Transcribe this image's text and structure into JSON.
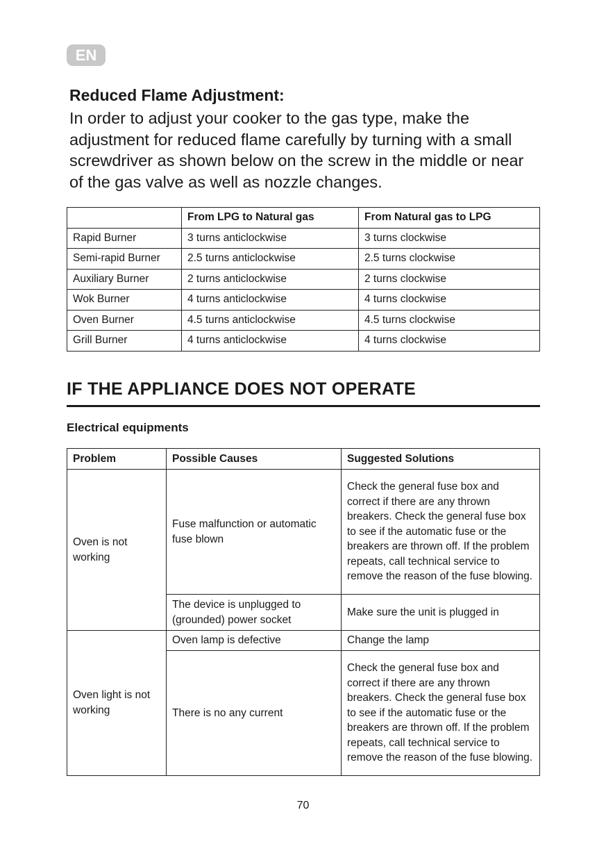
{
  "badge": "EN",
  "section1": {
    "title": "Reduced Flame Adjustment:",
    "text": "In order to adjust your cooker to the gas type, make the adjustment for reduced flame carefully by turning with a small screwdriver as shown below on the screw in the middle or near of the gas valve as well as nozzle changes."
  },
  "table1": {
    "headers": [
      "",
      "From LPG to Natural gas",
      "From Natural gas to LPG"
    ],
    "rows": [
      [
        "Rapid Burner",
        "3 turns anticlockwise",
        "3 turns clockwise"
      ],
      [
        "Semi-rapid Burner",
        "2.5 turns anticlockwise",
        "2.5 turns clockwise"
      ],
      [
        "Auxiliary Burner",
        "2 turns anticlockwise",
        "2 turns clockwise"
      ],
      [
        "Wok Burner",
        "4 turns anticlockwise",
        "4 turns clockwise"
      ],
      [
        "Oven Burner",
        "4.5 turns anticlockwise",
        "4.5 turns clockwise"
      ],
      [
        "Grill Burner",
        "4 turns anticlockwise",
        "4 turns clockwise"
      ]
    ]
  },
  "section2": {
    "title": "IF THE APPLIANCE DOES NOT OPERATE",
    "subtitle": "Electrical equipments"
  },
  "table2": {
    "headers": [
      "Problem",
      "Possible Causes",
      "Suggested Solutions"
    ],
    "problems": [
      "Oven is not working",
      "Oven light is not working"
    ],
    "causes": [
      "Fuse malfunction or automatic fuse blown",
      "The device is unplugged to (grounded) power socket",
      "Oven lamp is defective",
      "There is no any current"
    ],
    "solutions": [
      "Check the general fuse box and correct if there are any thrown breakers. Check the general fuse box to see if the automatic fuse or the breakers are thrown off. If the problem repeats, call technical service to remove the reason of the fuse blowing.",
      "Make sure the unit is plugged in",
      "Change the lamp",
      "Check the general fuse box and correct if there are any thrown breakers. Check the general fuse box to see if the automatic fuse or the breakers are thrown off. If the problem repeats, call technical service to remove the reason of the fuse blowing."
    ]
  },
  "page_number": "70"
}
